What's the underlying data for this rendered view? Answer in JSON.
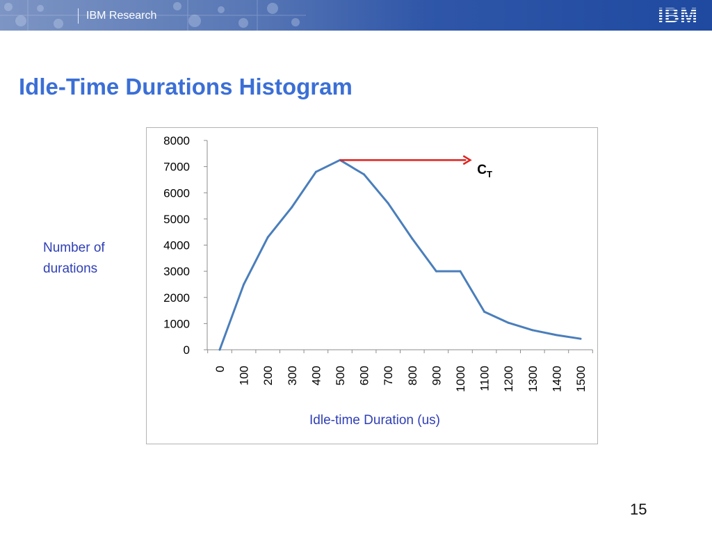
{
  "header": {
    "title": "IBM Research",
    "logo_text": "IBM",
    "background_color": "#2f56a8"
  },
  "slide": {
    "title": "Idle-Time Durations Histogram",
    "page_number": "15",
    "title_color": "#3b6fd6"
  },
  "chart_data": {
    "type": "line",
    "x": [
      0,
      100,
      200,
      300,
      400,
      500,
      600,
      700,
      800,
      900,
      1000,
      1100,
      1200,
      1300,
      1400,
      1500
    ],
    "tick_labels": [
      "0",
      "100",
      "200",
      "300",
      "400",
      "500",
      "600",
      "700",
      "800",
      "900",
      "1000",
      "1100",
      "1200",
      "1300",
      "1400",
      "1500"
    ],
    "series": [
      {
        "values": [
          0,
          2500,
          4300,
          5450,
          6800,
          7250,
          6700,
          5600,
          4250,
          3000,
          3000,
          1450,
          1030,
          750,
          560,
          420
        ],
        "color": "#4a7ebb"
      }
    ],
    "ylim": [
      0,
      8000
    ],
    "yticks": [
      0,
      1000,
      2000,
      3000,
      4000,
      5000,
      6000,
      7000,
      8000
    ],
    "xlabel": "Idle-time Duration (us)",
    "ylabel": "Number of durations",
    "grid": false,
    "annotation": {
      "label_main": "C",
      "label_sub": "T",
      "arrow_color": "#e0201c",
      "y_value": 7250,
      "x_start": 500,
      "x_end": 1050
    }
  }
}
